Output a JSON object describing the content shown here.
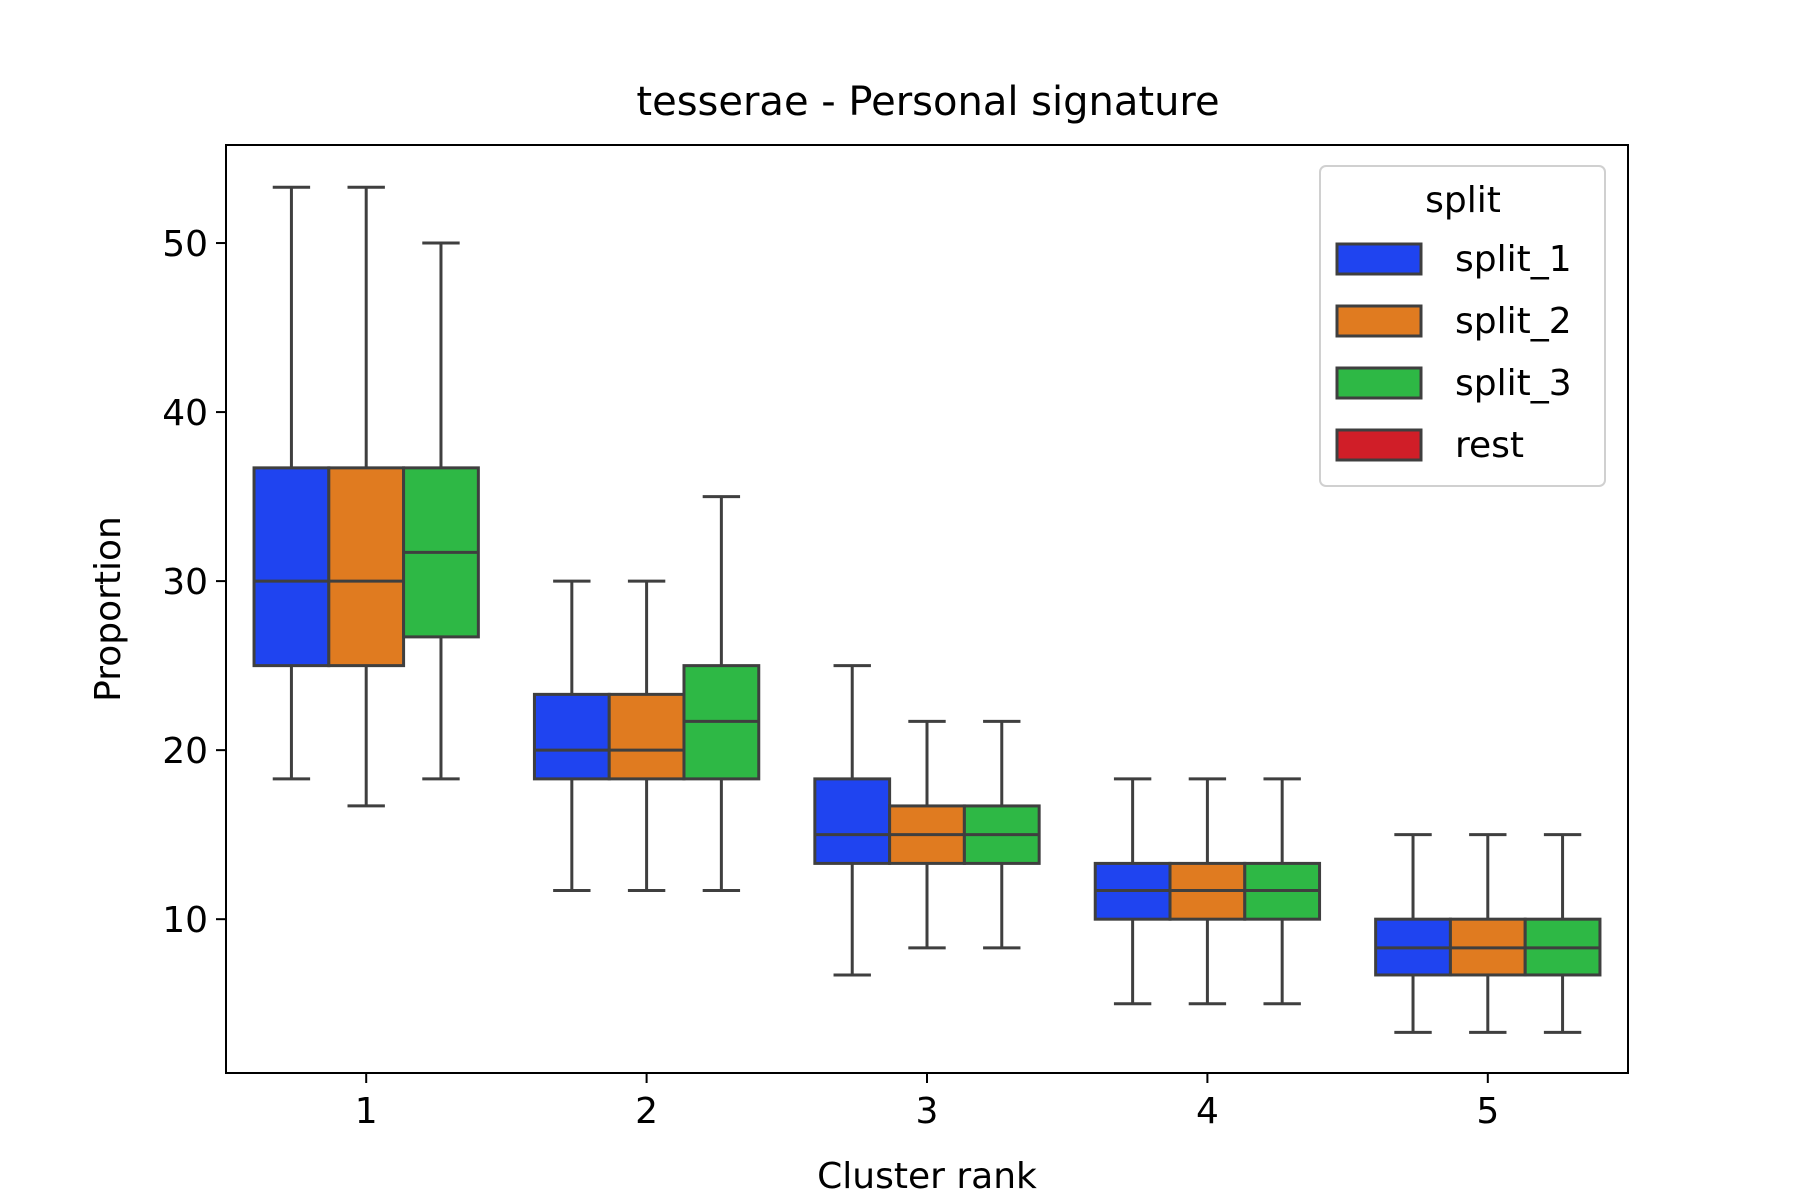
{
  "chart_data": {
    "type": "box",
    "title": "tesserae - Personal signature",
    "xlabel": "Cluster rank",
    "ylabel": "Proportion",
    "categories": [
      "1",
      "2",
      "3",
      "4",
      "5"
    ],
    "yticks": [
      10,
      20,
      30,
      40,
      50
    ],
    "ylim": [
      0.9,
      55.8
    ],
    "grid": false,
    "legend": {
      "title": "split",
      "position": "top-right",
      "entries": [
        "split_1",
        "split_2",
        "split_3",
        "rest"
      ]
    },
    "series": [
      {
        "name": "split_1",
        "color": "#1f44f0",
        "boxes": [
          {
            "whisker_low": 18.3,
            "q1": 25.0,
            "median": 30.0,
            "q3": 36.7,
            "whisker_high": 53.3
          },
          {
            "whisker_low": 11.7,
            "q1": 18.3,
            "median": 20.0,
            "q3": 23.3,
            "whisker_high": 30.0
          },
          {
            "whisker_low": 6.7,
            "q1": 13.3,
            "median": 15.0,
            "q3": 18.3,
            "whisker_high": 25.0
          },
          {
            "whisker_low": 5.0,
            "q1": 10.0,
            "median": 11.7,
            "q3": 13.3,
            "whisker_high": 18.3
          },
          {
            "whisker_low": 3.3,
            "q1": 6.7,
            "median": 8.3,
            "q3": 10.0,
            "whisker_high": 15.0
          }
        ]
      },
      {
        "name": "split_2",
        "color": "#e07b20",
        "boxes": [
          {
            "whisker_low": 16.7,
            "q1": 25.0,
            "median": 30.0,
            "q3": 36.7,
            "whisker_high": 53.3
          },
          {
            "whisker_low": 11.7,
            "q1": 18.3,
            "median": 20.0,
            "q3": 23.3,
            "whisker_high": 30.0
          },
          {
            "whisker_low": 8.3,
            "q1": 13.3,
            "median": 15.0,
            "q3": 16.7,
            "whisker_high": 21.7
          },
          {
            "whisker_low": 5.0,
            "q1": 10.0,
            "median": 11.7,
            "q3": 13.3,
            "whisker_high": 18.3
          },
          {
            "whisker_low": 3.3,
            "q1": 6.7,
            "median": 8.3,
            "q3": 10.0,
            "whisker_high": 15.0
          }
        ]
      },
      {
        "name": "split_3",
        "color": "#2eb845",
        "boxes": [
          {
            "whisker_low": 18.3,
            "q1": 26.7,
            "median": 31.7,
            "q3": 36.7,
            "whisker_high": 50.0
          },
          {
            "whisker_low": 11.7,
            "q1": 18.3,
            "median": 21.7,
            "q3": 25.0,
            "whisker_high": 35.0
          },
          {
            "whisker_low": 8.3,
            "q1": 13.3,
            "median": 15.0,
            "q3": 16.7,
            "whisker_high": 21.7
          },
          {
            "whisker_low": 5.0,
            "q1": 10.0,
            "median": 11.7,
            "q3": 13.3,
            "whisker_high": 18.3
          },
          {
            "whisker_low": 3.3,
            "q1": 6.7,
            "median": 8.3,
            "q3": 10.0,
            "whisker_high": 15.0
          }
        ]
      },
      {
        "name": "rest",
        "color": "#d01e28",
        "boxes": []
      }
    ]
  }
}
